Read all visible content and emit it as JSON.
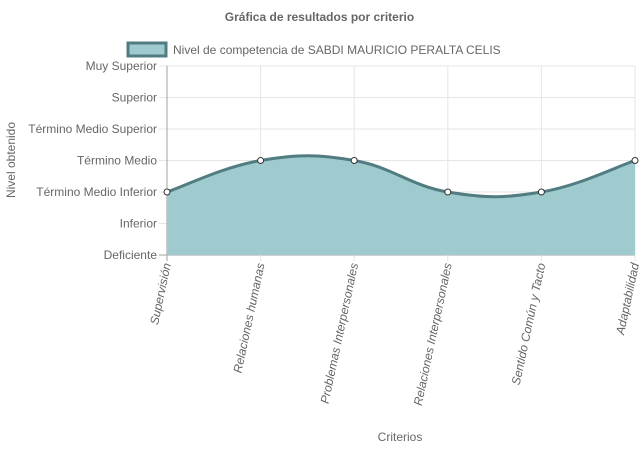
{
  "chart_data": {
    "type": "area",
    "title": "Gráfica de resultados por criterio",
    "xlabel": "Criterios",
    "ylabel": "Nivel obtenido",
    "y_levels": [
      "Deficiente",
      "Inferior",
      "Término Medio Inferior",
      "Término Medio",
      "Término Medio Superior",
      "Superior",
      "Muy Superior"
    ],
    "categories": [
      "Supervisión",
      "Relaciones humanas",
      "Problemas Interpersonales",
      "Relaciones Interpersonales",
      "Sentido Común y Tacto",
      "Adaptabilidad"
    ],
    "series": [
      {
        "name": "Nivel de competencia de SABDI MAURICIO PERALTA CELIS",
        "values": [
          2,
          3,
          3,
          2,
          2,
          3
        ],
        "value_labels": [
          "Término Medio Inferior",
          "Término Medio",
          "Término Medio",
          "Término Medio Inferior",
          "Término Medio Inferior",
          "Término Medio"
        ]
      }
    ],
    "ylim": [
      0,
      6
    ],
    "grid": true,
    "legend_position": "top",
    "colors": {
      "fill": "#9fcbcf",
      "line": "#507c82",
      "point_fill": "#ffffff",
      "grid": "#e5e5e5",
      "axis": "#a0a0a0"
    }
  }
}
